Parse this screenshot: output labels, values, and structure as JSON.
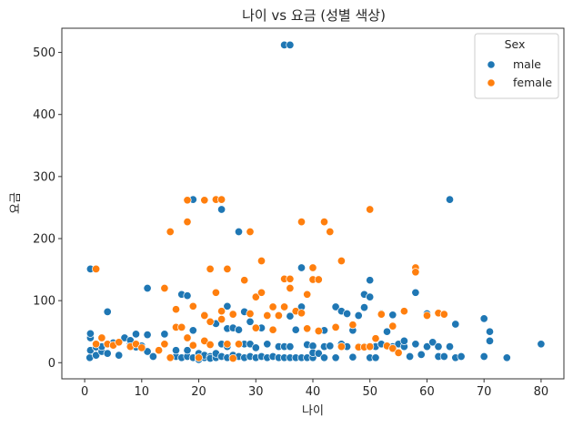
{
  "chart_data": {
    "type": "scatter",
    "title": "나이 vs 요금 (성별 색상)",
    "xlabel": "나이",
    "ylabel": "요금",
    "xlim": [
      -4,
      84
    ],
    "ylim": [
      -26,
      539
    ],
    "xticks": [
      0,
      10,
      20,
      30,
      40,
      50,
      60,
      70,
      80
    ],
    "yticks": [
      0,
      100,
      200,
      300,
      400,
      500
    ],
    "grid": false,
    "legend": {
      "title": "Sex",
      "placement": "top-right"
    },
    "series": [
      {
        "name": "male",
        "color": "#1f77b4",
        "points": [
          [
            0.9,
            8
          ],
          [
            1,
            20
          ],
          [
            1,
            151
          ],
          [
            1,
            40
          ],
          [
            1,
            47
          ],
          [
            2,
            12
          ],
          [
            2,
            30
          ],
          [
            2,
            25
          ],
          [
            3,
            18
          ],
          [
            3,
            26
          ],
          [
            4,
            82
          ],
          [
            4,
            15
          ],
          [
            4,
            30
          ],
          [
            5,
            32
          ],
          [
            6,
            12
          ],
          [
            7,
            40
          ],
          [
            8,
            30
          ],
          [
            8,
            36
          ],
          [
            9,
            25
          ],
          [
            9,
            46
          ],
          [
            10,
            27
          ],
          [
            11,
            120
          ],
          [
            11,
            45
          ],
          [
            11,
            18
          ],
          [
            12,
            10
          ],
          [
            14,
            46
          ],
          [
            14,
            30
          ],
          [
            15,
            8
          ],
          [
            16,
            10
          ],
          [
            16,
            20
          ],
          [
            17,
            110
          ],
          [
            17,
            8
          ],
          [
            18,
            108
          ],
          [
            18,
            10
          ],
          [
            18,
            20
          ],
          [
            19,
            263
          ],
          [
            19,
            8
          ],
          [
            19,
            52
          ],
          [
            20,
            10
          ],
          [
            20,
            5
          ],
          [
            20,
            15
          ],
          [
            21,
            77
          ],
          [
            21,
            8
          ],
          [
            21,
            12
          ],
          [
            22,
            10
          ],
          [
            22,
            7
          ],
          [
            23,
            8
          ],
          [
            23,
            15
          ],
          [
            23,
            63
          ],
          [
            24,
            247
          ],
          [
            24,
            10
          ],
          [
            24,
            30
          ],
          [
            25,
            91
          ],
          [
            25,
            8
          ],
          [
            25,
            26
          ],
          [
            25,
            55
          ],
          [
            26,
            8
          ],
          [
            26,
            56
          ],
          [
            26,
            12
          ],
          [
            27,
            211
          ],
          [
            27,
            53
          ],
          [
            27,
            10
          ],
          [
            28,
            82
          ],
          [
            28,
            8
          ],
          [
            28,
            30
          ],
          [
            29,
            10
          ],
          [
            29,
            66
          ],
          [
            29,
            30
          ],
          [
            30,
            8
          ],
          [
            30,
            24
          ],
          [
            31,
            56
          ],
          [
            31,
            10
          ],
          [
            32,
            8
          ],
          [
            32,
            30
          ],
          [
            32,
            76
          ],
          [
            33,
            10
          ],
          [
            33,
            53
          ],
          [
            34,
            8
          ],
          [
            34,
            26
          ],
          [
            35,
            512
          ],
          [
            35,
            26
          ],
          [
            35,
            90
          ],
          [
            35,
            8
          ],
          [
            36,
            512
          ],
          [
            36,
            26
          ],
          [
            36,
            75
          ],
          [
            36,
            8
          ],
          [
            37,
            53
          ],
          [
            37,
            8
          ],
          [
            38,
            153
          ],
          [
            38,
            90
          ],
          [
            38,
            8
          ],
          [
            39,
            29
          ],
          [
            39,
            8
          ],
          [
            40,
            27
          ],
          [
            40,
            8
          ],
          [
            40,
            16
          ],
          [
            41,
            15
          ],
          [
            42,
            52
          ],
          [
            42,
            8
          ],
          [
            42,
            26
          ],
          [
            43,
            27
          ],
          [
            44,
            90
          ],
          [
            44,
            8
          ],
          [
            45,
            83
          ],
          [
            45,
            30
          ],
          [
            46,
            79
          ],
          [
            46,
            26
          ],
          [
            47,
            52
          ],
          [
            47,
            9
          ],
          [
            48,
            76
          ],
          [
            48,
            26
          ],
          [
            49,
            89
          ],
          [
            49,
            26
          ],
          [
            49,
            110
          ],
          [
            50,
            133
          ],
          [
            50,
            106
          ],
          [
            50,
            8
          ],
          [
            51,
            26
          ],
          [
            51,
            8
          ],
          [
            52,
            30
          ],
          [
            52,
            79
          ],
          [
            53,
            50
          ],
          [
            54,
            77
          ],
          [
            54,
            26
          ],
          [
            55,
            30
          ],
          [
            56,
            26
          ],
          [
            56,
            35
          ],
          [
            57,
            10
          ],
          [
            58,
            113
          ],
          [
            58,
            30
          ],
          [
            59,
            13
          ],
          [
            60,
            79
          ],
          [
            60,
            26
          ],
          [
            61,
            33
          ],
          [
            62,
            10
          ],
          [
            62,
            26
          ],
          [
            63,
            10
          ],
          [
            64,
            263
          ],
          [
            64,
            26
          ],
          [
            65,
            62
          ],
          [
            65,
            8
          ],
          [
            66,
            10
          ],
          [
            70,
            10
          ],
          [
            70,
            71
          ],
          [
            71,
            50
          ],
          [
            71,
            35
          ],
          [
            74,
            8
          ],
          [
            80,
            30
          ]
        ]
      },
      {
        "name": "female",
        "color": "#ff7f0e",
        "points": [
          [
            2,
            151
          ],
          [
            2,
            30
          ],
          [
            3,
            40
          ],
          [
            4,
            30
          ],
          [
            5,
            28
          ],
          [
            6,
            33
          ],
          [
            8,
            26
          ],
          [
            9,
            30
          ],
          [
            10,
            24
          ],
          [
            13,
            20
          ],
          [
            14,
            120
          ],
          [
            14,
            30
          ],
          [
            15,
            211
          ],
          [
            15,
            8
          ],
          [
            16,
            86
          ],
          [
            16,
            57
          ],
          [
            17,
            57
          ],
          [
            18,
            262
          ],
          [
            18,
            227
          ],
          [
            18,
            40
          ],
          [
            19,
            91
          ],
          [
            19,
            28
          ],
          [
            20,
            8
          ],
          [
            21,
            262
          ],
          [
            21,
            76
          ],
          [
            21,
            35
          ],
          [
            22,
            151
          ],
          [
            22,
            66
          ],
          [
            22,
            29
          ],
          [
            23,
            263
          ],
          [
            23,
            113
          ],
          [
            24,
            263
          ],
          [
            24,
            83
          ],
          [
            24,
            70
          ],
          [
            25,
            151
          ],
          [
            25,
            30
          ],
          [
            26,
            78
          ],
          [
            26,
            7
          ],
          [
            27,
            30
          ],
          [
            28,
            133
          ],
          [
            29,
            211
          ],
          [
            29,
            79
          ],
          [
            30,
            106
          ],
          [
            30,
            56
          ],
          [
            31,
            164
          ],
          [
            31,
            113
          ],
          [
            32,
            76
          ],
          [
            33,
            90
          ],
          [
            33,
            53
          ],
          [
            34,
            76
          ],
          [
            35,
            135
          ],
          [
            35,
            90
          ],
          [
            36,
            135
          ],
          [
            36,
            120
          ],
          [
            37,
            83
          ],
          [
            38,
            227
          ],
          [
            38,
            80
          ],
          [
            39,
            110
          ],
          [
            39,
            55
          ],
          [
            40,
            153
          ],
          [
            40,
            134
          ],
          [
            41,
            134
          ],
          [
            41,
            51
          ],
          [
            42,
            227
          ],
          [
            43,
            211
          ],
          [
            44,
            57
          ],
          [
            45,
            164
          ],
          [
            45,
            26
          ],
          [
            47,
            61
          ],
          [
            48,
            25
          ],
          [
            49,
            25
          ],
          [
            50,
            247
          ],
          [
            50,
            26
          ],
          [
            51,
            39
          ],
          [
            52,
            78
          ],
          [
            53,
            27
          ],
          [
            54,
            59
          ],
          [
            54,
            23
          ],
          [
            55,
            16
          ],
          [
            56,
            83
          ],
          [
            58,
            153
          ],
          [
            58,
            146
          ],
          [
            60,
            76
          ],
          [
            62,
            80
          ],
          [
            63,
            78
          ]
        ]
      }
    ]
  }
}
